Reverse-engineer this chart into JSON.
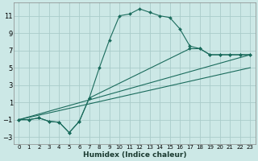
{
  "xlabel": "Humidex (Indice chaleur)",
  "xlim": [
    -0.5,
    23.5
  ],
  "ylim": [
    -3.8,
    12.5
  ],
  "yticks": [
    -3,
    -1,
    1,
    3,
    5,
    7,
    9,
    11
  ],
  "xticks": [
    0,
    1,
    2,
    3,
    4,
    5,
    6,
    7,
    8,
    9,
    10,
    11,
    12,
    13,
    14,
    15,
    16,
    17,
    18,
    19,
    20,
    21,
    22,
    23
  ],
  "bg_color": "#cce8e6",
  "grid_color": "#aaccca",
  "line_color": "#1a6b5c",
  "line1_x": [
    0,
    1,
    2,
    3,
    4,
    5,
    6,
    7,
    8,
    9,
    10,
    11,
    12,
    13,
    14,
    15,
    16,
    17,
    18,
    19,
    20,
    21,
    22,
    23
  ],
  "line1_y": [
    -1,
    -1,
    -0.8,
    -1.2,
    -1.3,
    -2.5,
    -1.2,
    1.5,
    5.0,
    8.2,
    11.0,
    11.2,
    11.8,
    11.4,
    11.0,
    10.8,
    9.5,
    7.5,
    7.2,
    6.5,
    6.5,
    6.5,
    6.5,
    6.5
  ],
  "line2_x": [
    0,
    1,
    2,
    3,
    4,
    5,
    6,
    7,
    17,
    18,
    19,
    20,
    21,
    22,
    23
  ],
  "line2_y": [
    -1,
    -1,
    -0.8,
    -1.2,
    -1.3,
    -2.5,
    -1.2,
    1.5,
    7.2,
    7.2,
    6.5,
    6.5,
    6.5,
    6.5,
    6.5
  ],
  "line3_x": [
    0,
    23
  ],
  "line3_y": [
    -1,
    6.5
  ],
  "line4_x": [
    0,
    23
  ],
  "line4_y": [
    -1,
    5.0
  ]
}
